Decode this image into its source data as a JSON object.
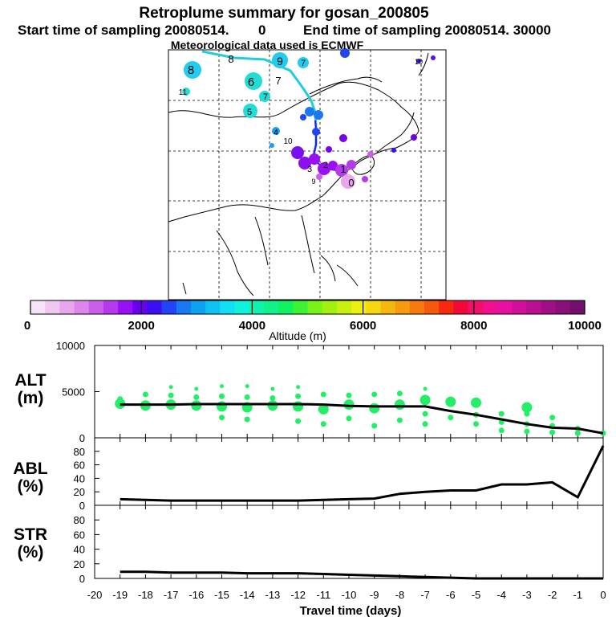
{
  "header": {
    "title": "Retroplume summary for gosan_200805",
    "start_label": "Start time of sampling 20080514.",
    "start_value": "0",
    "end_label": "End time of sampling 20080514. 30000",
    "met_label": "Meteorological data used is ECMWF"
  },
  "colorbar": {
    "ticks": [
      "0",
      "2000",
      "4000",
      "6000",
      "8000",
      "10000"
    ],
    "label": "Altitude (m)",
    "colors": [
      "#f7e3f7",
      "#f0c7f0",
      "#e8a6ec",
      "#dd86ea",
      "#cc5fea",
      "#b43aec",
      "#9910f2",
      "#6a00f0",
      "#3a10f0",
      "#2244f2",
      "#1a78f2",
      "#10a0f2",
      "#10c2f2",
      "#10e0f2",
      "#10f2dc",
      "#10f2b0",
      "#10f288",
      "#10f262",
      "#3cf235",
      "#78f218",
      "#a2f010",
      "#c8f010",
      "#eef010",
      "#f6d810",
      "#f6b810",
      "#f69a10",
      "#f67a10",
      "#f65810",
      "#f62810",
      "#f00a3a",
      "#f0106a",
      "#f01090",
      "#e810a0",
      "#d0109a",
      "#b81090",
      "#a01085",
      "#881078",
      "#70106a"
    ]
  },
  "map": {
    "tracer_labels": [
      "8",
      "8",
      "9",
      "7",
      "6",
      "7",
      "7",
      "5",
      "11",
      "10",
      "10",
      "4",
      "3",
      "2",
      "1",
      "0",
      "9"
    ]
  },
  "chart_data": [
    {
      "type": "line",
      "panel": "ALT",
      "ylabel": "ALT (m)",
      "ylabel_top": "ALT",
      "ylabel_bottom": "(m)",
      "ylim": [
        0,
        10000
      ],
      "yticks": [
        "0",
        "5000",
        "10000"
      ],
      "x": [
        -19,
        -18,
        -17,
        -16,
        -15,
        -14,
        -13,
        -12,
        -11,
        -10,
        -9,
        -8,
        -7,
        -6,
        -5,
        -4,
        -3,
        -2,
        -1,
        0
      ],
      "series": [
        {
          "name": "mean altitude",
          "values": [
            3600,
            3600,
            3600,
            3650,
            3650,
            3650,
            3650,
            3650,
            3600,
            3450,
            3400,
            3400,
            3400,
            2900,
            2500,
            2000,
            1500,
            1100,
            1000,
            500
          ]
        }
      ],
      "scatter": [
        {
          "x": -19,
          "y": 3700
        },
        {
          "x": -19,
          "y": 4200
        },
        {
          "x": -18,
          "y": 3500
        },
        {
          "x": -18,
          "y": 4700
        },
        {
          "x": -17,
          "y": 3600
        },
        {
          "x": -17,
          "y": 4600
        },
        {
          "x": -17,
          "y": 5500
        },
        {
          "x": -16,
          "y": 3500
        },
        {
          "x": -16,
          "y": 4400
        },
        {
          "x": -16,
          "y": 5300
        },
        {
          "x": -15,
          "y": 3400
        },
        {
          "x": -15,
          "y": 2200
        },
        {
          "x": -15,
          "y": 4500
        },
        {
          "x": -15,
          "y": 5600
        },
        {
          "x": -14,
          "y": 3300
        },
        {
          "x": -14,
          "y": 2000
        },
        {
          "x": -14,
          "y": 4400
        },
        {
          "x": -14,
          "y": 5600
        },
        {
          "x": -13,
          "y": 3500
        },
        {
          "x": -13,
          "y": 4300
        },
        {
          "x": -13,
          "y": 5300
        },
        {
          "x": -12,
          "y": 3400
        },
        {
          "x": -12,
          "y": 1800
        },
        {
          "x": -12,
          "y": 4500
        },
        {
          "x": -12,
          "y": 5500
        },
        {
          "x": -11,
          "y": 3100
        },
        {
          "x": -11,
          "y": 1500
        },
        {
          "x": -11,
          "y": 4700
        },
        {
          "x": -10,
          "y": 3600
        },
        {
          "x": -10,
          "y": 2100
        },
        {
          "x": -10,
          "y": 4600
        },
        {
          "x": -9,
          "y": 3200
        },
        {
          "x": -9,
          "y": 1300
        },
        {
          "x": -9,
          "y": 4700
        },
        {
          "x": -8,
          "y": 3600
        },
        {
          "x": -8,
          "y": 1900
        },
        {
          "x": -8,
          "y": 4800
        },
        {
          "x": -7,
          "y": 4100
        },
        {
          "x": -7,
          "y": 2600
        },
        {
          "x": -7,
          "y": 5300
        },
        {
          "x": -7,
          "y": 1500
        },
        {
          "x": -6,
          "y": 3900
        },
        {
          "x": -6,
          "y": 2200
        },
        {
          "x": -5,
          "y": 3800
        },
        {
          "x": -5,
          "y": 1500
        },
        {
          "x": -5,
          "y": 2500
        },
        {
          "x": -4,
          "y": 1700
        },
        {
          "x": -4,
          "y": 2600
        },
        {
          "x": -4,
          "y": 800
        },
        {
          "x": -3,
          "y": 2600
        },
        {
          "x": -3,
          "y": 1500
        },
        {
          "x": -3,
          "y": 700
        },
        {
          "x": -3,
          "y": 3300
        },
        {
          "x": -2,
          "y": 1300
        },
        {
          "x": -2,
          "y": 600
        },
        {
          "x": -2,
          "y": 2200
        },
        {
          "x": -1,
          "y": 1000
        },
        {
          "x": -1,
          "y": 500
        },
        {
          "x": 0,
          "y": 500
        }
      ]
    },
    {
      "type": "line",
      "panel": "ABL",
      "ylabel": "ABL (%)",
      "ylabel_top": "ABL",
      "ylabel_bottom": "(%)",
      "ylim": [
        0,
        100
      ],
      "yticks": [
        "0",
        "20",
        "40",
        "60",
        "80"
      ],
      "x": [
        -19,
        -18,
        -17,
        -16,
        -15,
        -14,
        -13,
        -12,
        -11,
        -10,
        -9,
        -8,
        -7,
        -6,
        -5,
        -4,
        -3,
        -2,
        -1,
        0
      ],
      "series": [
        {
          "name": "ABL fraction",
          "values": [
            9,
            8,
            7,
            7,
            7,
            7,
            7,
            7,
            8,
            9,
            10,
            17,
            20,
            22,
            22,
            31,
            31,
            34,
            12,
            88
          ]
        }
      ]
    },
    {
      "type": "line",
      "panel": "STR",
      "ylabel": "STR (%)",
      "ylabel_top": "STR",
      "ylabel_bottom": "(%)",
      "ylim": [
        0,
        100
      ],
      "yticks": [
        "0",
        "20",
        "40",
        "60",
        "80"
      ],
      "x": [
        -19,
        -18,
        -17,
        -16,
        -15,
        -14,
        -13,
        -12,
        -11,
        -10,
        -9,
        -8,
        -7,
        -6,
        -5,
        -4,
        -3,
        -2,
        -1,
        0
      ],
      "series": [
        {
          "name": "stratosphere fraction",
          "values": [
            9,
            9,
            8,
            8,
            8,
            7,
            7,
            7,
            6,
            5,
            4,
            3,
            2,
            1,
            0,
            0,
            0,
            0,
            0,
            0
          ]
        }
      ]
    }
  ],
  "xaxis": {
    "ticks": [
      "-20",
      "-19",
      "-18",
      "-17",
      "-16",
      "-15",
      "-14",
      "-13",
      "-12",
      "-11",
      "-10",
      "-9",
      "-8",
      "-7",
      "-6",
      "-5",
      "-4",
      "-3",
      "-2",
      "-1",
      "0"
    ],
    "label": "Travel time (days)"
  }
}
